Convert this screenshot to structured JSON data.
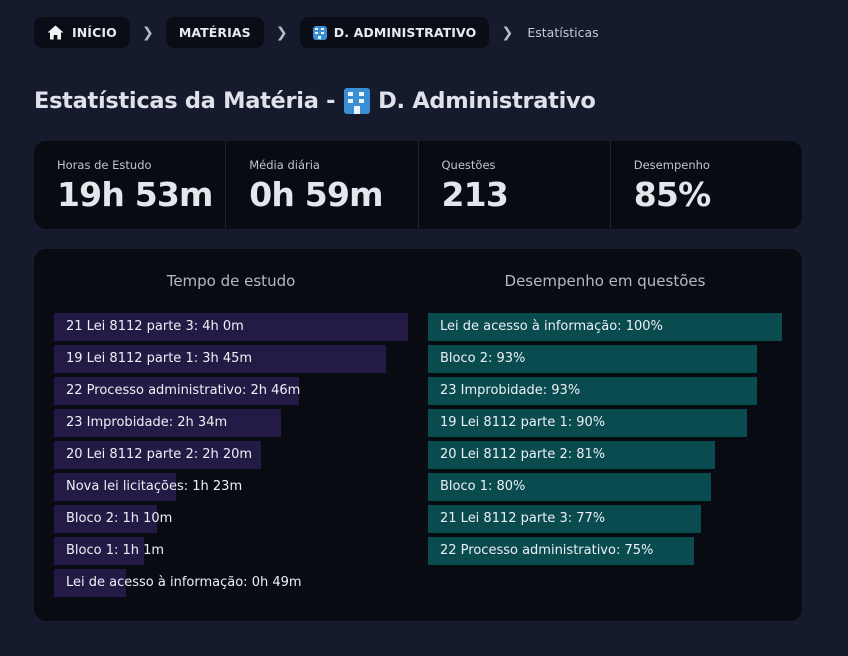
{
  "breadcrumb": {
    "home": "INÍCIO",
    "subjects": "MATÉRIAS",
    "subject": "D. ADMINISTRATIVO",
    "current": "Estatísticas"
  },
  "page": {
    "title_prefix": "Estatísticas da Matéria -",
    "title_subject": "D. Administrativo"
  },
  "stats": [
    {
      "label": "Horas de Estudo",
      "value": "19h 53m"
    },
    {
      "label": "Média diária",
      "value": "0h 59m"
    },
    {
      "label": "Questões",
      "value": "213"
    },
    {
      "label": "Desempenho",
      "value": "85%"
    }
  ],
  "colors": {
    "background": "#151a2c",
    "panel": "#090b12",
    "study_bar": "#231a45",
    "performance_bar": "#0a4b50"
  },
  "chart_data": [
    {
      "type": "bar",
      "orientation": "horizontal",
      "title": "Tempo de estudo",
      "categories": [
        "21 Lei 8112 parte 3",
        "19 Lei 8112 parte 1",
        "22 Processo administrativo",
        "23 Improbidade",
        "20 Lei 8112 parte 2",
        "Nova lei licitações",
        "Bloco 2",
        "Bloco 1",
        "Lei de acesso à informação"
      ],
      "values": [
        240,
        225,
        166,
        154,
        140,
        83,
        70,
        61,
        49
      ],
      "unit": "minutes",
      "labels": [
        "21 Lei 8112 parte 3: 4h 0m",
        "19 Lei 8112 parte 1: 3h 45m",
        "22 Processo administrativo: 2h 46m",
        "23 Improbidade: 2h 34m",
        "20 Lei 8112 parte 2: 2h 20m",
        "Nova lei licitações: 1h 23m",
        "Bloco 2: 1h 10m",
        "Bloco 1: 1h 1m",
        "Lei de acesso à informação: 0h 49m"
      ],
      "xlim": [
        0,
        240
      ]
    },
    {
      "type": "bar",
      "orientation": "horizontal",
      "title": "Desempenho em questões",
      "categories": [
        "Lei de acesso à informação",
        "Bloco 2",
        "23 Improbidade",
        "19 Lei 8112 parte 1",
        "20 Lei 8112 parte 2",
        "Bloco 1",
        "21 Lei 8112 parte 3",
        "22 Processo administrativo"
      ],
      "values": [
        100,
        93,
        93,
        90,
        81,
        80,
        77,
        75
      ],
      "unit": "percent",
      "labels": [
        "Lei de acesso à informação: 100%",
        "Bloco 2: 93%",
        "23 Improbidade: 93%",
        "19 Lei 8112 parte 1: 90%",
        "20 Lei 8112 parte 2: 81%",
        "Bloco 1: 80%",
        "21 Lei 8112 parte 3: 77%",
        "22 Processo administrativo: 75%"
      ],
      "xlim": [
        0,
        100
      ]
    }
  ]
}
